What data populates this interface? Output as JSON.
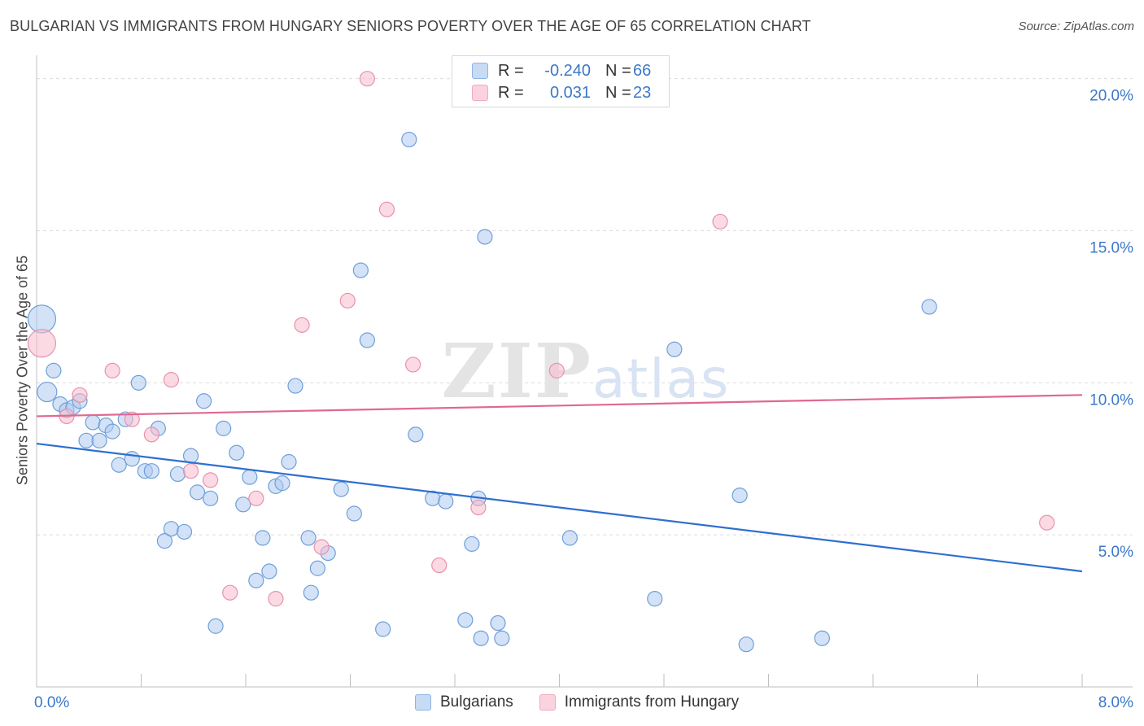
{
  "header": {
    "title": "BULGARIAN VS IMMIGRANTS FROM HUNGARY SENIORS POVERTY OVER THE AGE OF 65 CORRELATION CHART",
    "source": "Source: ZipAtlas.com"
  },
  "watermark": {
    "text_bold": "ZIP",
    "text_light": "atlas"
  },
  "legend": {
    "rows": [
      {
        "r_label": "R =",
        "r_value": "-0.240",
        "n_label": "N =",
        "n_value": "66",
        "color": "#aecbf0"
      },
      {
        "r_label": "R =",
        "r_value": "0.031",
        "n_label": "N =",
        "n_value": "23",
        "color": "#f7bccd"
      }
    ]
  },
  "bottom_legend": [
    {
      "label": "Bulgarians",
      "color": "#aecbf0"
    },
    {
      "label": "Immigrants from Hungary",
      "color": "#f7bccd"
    }
  ],
  "chart_data": {
    "type": "scatter",
    "title": "BULGARIAN VS IMMIGRANTS FROM HUNGARY SENIORS POVERTY OVER THE AGE OF 65 CORRELATION CHART",
    "xlabel": "",
    "ylabel": "Seniors Poverty Over the Age of 65",
    "xlim": [
      0,
      8
    ],
    "ylim": [
      0,
      20.5
    ],
    "x_tick_labels": [
      "0.0%",
      "8.0%"
    ],
    "y_ticks": [
      5,
      10,
      15,
      20
    ],
    "y_tick_labels": [
      "5.0%",
      "10.0%",
      "15.0%",
      "20.0%"
    ],
    "grid": true,
    "series": [
      {
        "name": "Bulgarians",
        "color": "#aecbf0",
        "stroke": "#6f9fd8",
        "trend_color": "#2f6fd0",
        "trend": [
          [
            0,
            8.0
          ],
          [
            8.0,
            3.8
          ]
        ],
        "points": [
          [
            0.04,
            12.1,
            "big"
          ],
          [
            0.08,
            9.7,
            "mid"
          ],
          [
            0.13,
            10.4
          ],
          [
            0.18,
            9.3
          ],
          [
            0.23,
            9.1
          ],
          [
            0.28,
            9.2
          ],
          [
            0.33,
            9.4
          ],
          [
            0.43,
            8.7
          ],
          [
            0.38,
            8.1
          ],
          [
            0.48,
            8.1
          ],
          [
            0.53,
            8.6
          ],
          [
            0.58,
            8.4
          ],
          [
            0.63,
            7.3
          ],
          [
            0.68,
            8.8
          ],
          [
            0.73,
            7.5
          ],
          [
            0.78,
            10.0
          ],
          [
            0.83,
            7.1
          ],
          [
            0.88,
            7.1
          ],
          [
            0.93,
            8.5
          ],
          [
            0.98,
            4.8
          ],
          [
            1.03,
            5.2
          ],
          [
            1.08,
            7.0
          ],
          [
            1.13,
            5.1
          ],
          [
            1.18,
            7.6
          ],
          [
            1.23,
            6.4
          ],
          [
            1.28,
            9.4
          ],
          [
            1.33,
            6.2
          ],
          [
            1.37,
            2.0
          ],
          [
            1.43,
            8.5
          ],
          [
            1.53,
            7.7
          ],
          [
            1.58,
            6.0
          ],
          [
            1.63,
            6.9
          ],
          [
            1.68,
            3.5
          ],
          [
            1.73,
            4.9
          ],
          [
            1.78,
            3.8
          ],
          [
            1.83,
            6.6
          ],
          [
            1.88,
            6.7
          ],
          [
            1.93,
            7.4
          ],
          [
            1.98,
            9.9
          ],
          [
            2.08,
            4.9
          ],
          [
            2.1,
            3.1
          ],
          [
            2.15,
            3.9
          ],
          [
            2.23,
            4.4
          ],
          [
            2.33,
            6.5
          ],
          [
            2.43,
            5.7
          ],
          [
            2.48,
            13.7
          ],
          [
            2.53,
            11.4
          ],
          [
            2.65,
            1.9
          ],
          [
            2.85,
            18.0
          ],
          [
            2.9,
            8.3
          ],
          [
            3.03,
            6.2
          ],
          [
            3.13,
            6.1
          ],
          [
            3.28,
            2.2
          ],
          [
            3.33,
            4.7
          ],
          [
            3.38,
            6.2
          ],
          [
            3.43,
            14.8
          ],
          [
            3.4,
            1.6
          ],
          [
            3.53,
            2.1
          ],
          [
            3.56,
            1.6
          ],
          [
            4.08,
            4.9
          ],
          [
            4.73,
            2.9
          ],
          [
            4.88,
            11.1
          ],
          [
            5.38,
            6.3
          ],
          [
            5.43,
            1.4
          ],
          [
            6.01,
            1.6
          ],
          [
            6.83,
            12.5
          ]
        ]
      },
      {
        "name": "Immigrants from Hungary",
        "color": "#f7bccd",
        "stroke": "#e892ab",
        "trend_color": "#e06892",
        "trend": [
          [
            0,
            8.9
          ],
          [
            8.0,
            9.6
          ]
        ],
        "points": [
          [
            0.04,
            11.3,
            "big"
          ],
          [
            0.23,
            8.9
          ],
          [
            0.33,
            9.6
          ],
          [
            0.58,
            10.4
          ],
          [
            0.73,
            8.8
          ],
          [
            0.88,
            8.3
          ],
          [
            1.03,
            10.1
          ],
          [
            1.18,
            7.1
          ],
          [
            1.33,
            6.8
          ],
          [
            1.48,
            3.1
          ],
          [
            1.68,
            6.2
          ],
          [
            1.83,
            2.9
          ],
          [
            2.03,
            11.9
          ],
          [
            2.18,
            4.6
          ],
          [
            2.38,
            12.7
          ],
          [
            2.53,
            20.0
          ],
          [
            2.68,
            15.7
          ],
          [
            2.88,
            10.6
          ],
          [
            3.08,
            4.0
          ],
          [
            3.38,
            5.9
          ],
          [
            3.98,
            10.4
          ],
          [
            5.23,
            15.3
          ],
          [
            7.73,
            5.4
          ]
        ]
      }
    ]
  }
}
